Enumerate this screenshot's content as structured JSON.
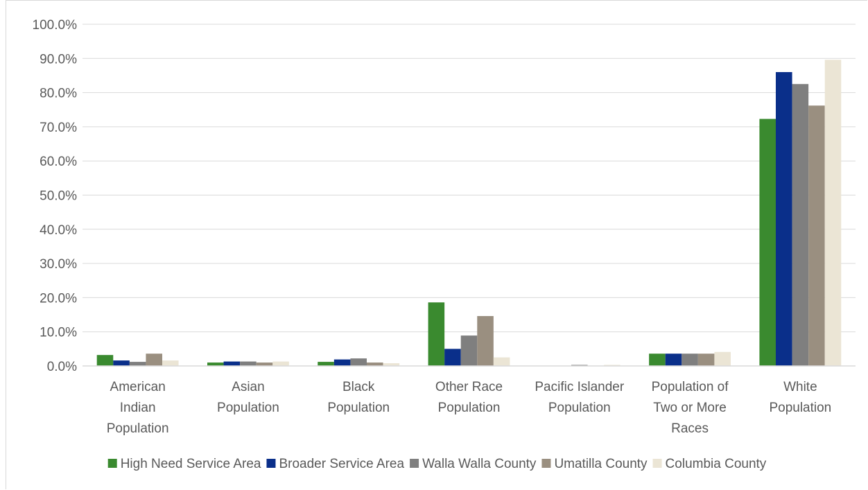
{
  "chart_data": {
    "type": "bar",
    "title": "",
    "xlabel": "",
    "ylabel": "",
    "ylim": [
      0,
      100
    ],
    "y_tick_step": 10,
    "y_tick_labels": [
      "0.0%",
      "10.0%",
      "20.0%",
      "30.0%",
      "40.0%",
      "50.0%",
      "60.0%",
      "70.0%",
      "80.0%",
      "90.0%",
      "100.0%"
    ],
    "grid": true,
    "legend_position": "bottom",
    "categories": [
      [
        "American",
        "Indian",
        "Population"
      ],
      [
        "Asian",
        "Population"
      ],
      [
        "Black",
        "Population"
      ],
      [
        "Other Race",
        "Population"
      ],
      [
        "Pacific Islander",
        "Population"
      ],
      [
        "Population of",
        "Two or More",
        "Races"
      ],
      [
        "White",
        "Population"
      ]
    ],
    "series": [
      {
        "name": "High Need Service Area",
        "color": "#3a8a2f",
        "values": [
          3.2,
          1.0,
          1.2,
          18.6,
          0.1,
          3.6,
          72.3
        ]
      },
      {
        "name": "Broader Service Area",
        "color": "#0a2f8a",
        "values": [
          1.6,
          1.3,
          1.9,
          5.0,
          0.1,
          3.6,
          86.0
        ]
      },
      {
        "name": "Walla Walla County",
        "color": "#7f7f7f",
        "values": [
          1.2,
          1.3,
          2.2,
          8.9,
          0.3,
          3.6,
          82.5
        ]
      },
      {
        "name": "Umatilla County",
        "color": "#9a8f80",
        "values": [
          3.6,
          1.0,
          1.0,
          14.6,
          0.1,
          3.6,
          76.2
        ]
      },
      {
        "name": "Columbia County",
        "color": "#ebe5d5",
        "values": [
          1.6,
          1.3,
          0.8,
          2.5,
          0.3,
          4.1,
          89.6
        ]
      }
    ]
  }
}
